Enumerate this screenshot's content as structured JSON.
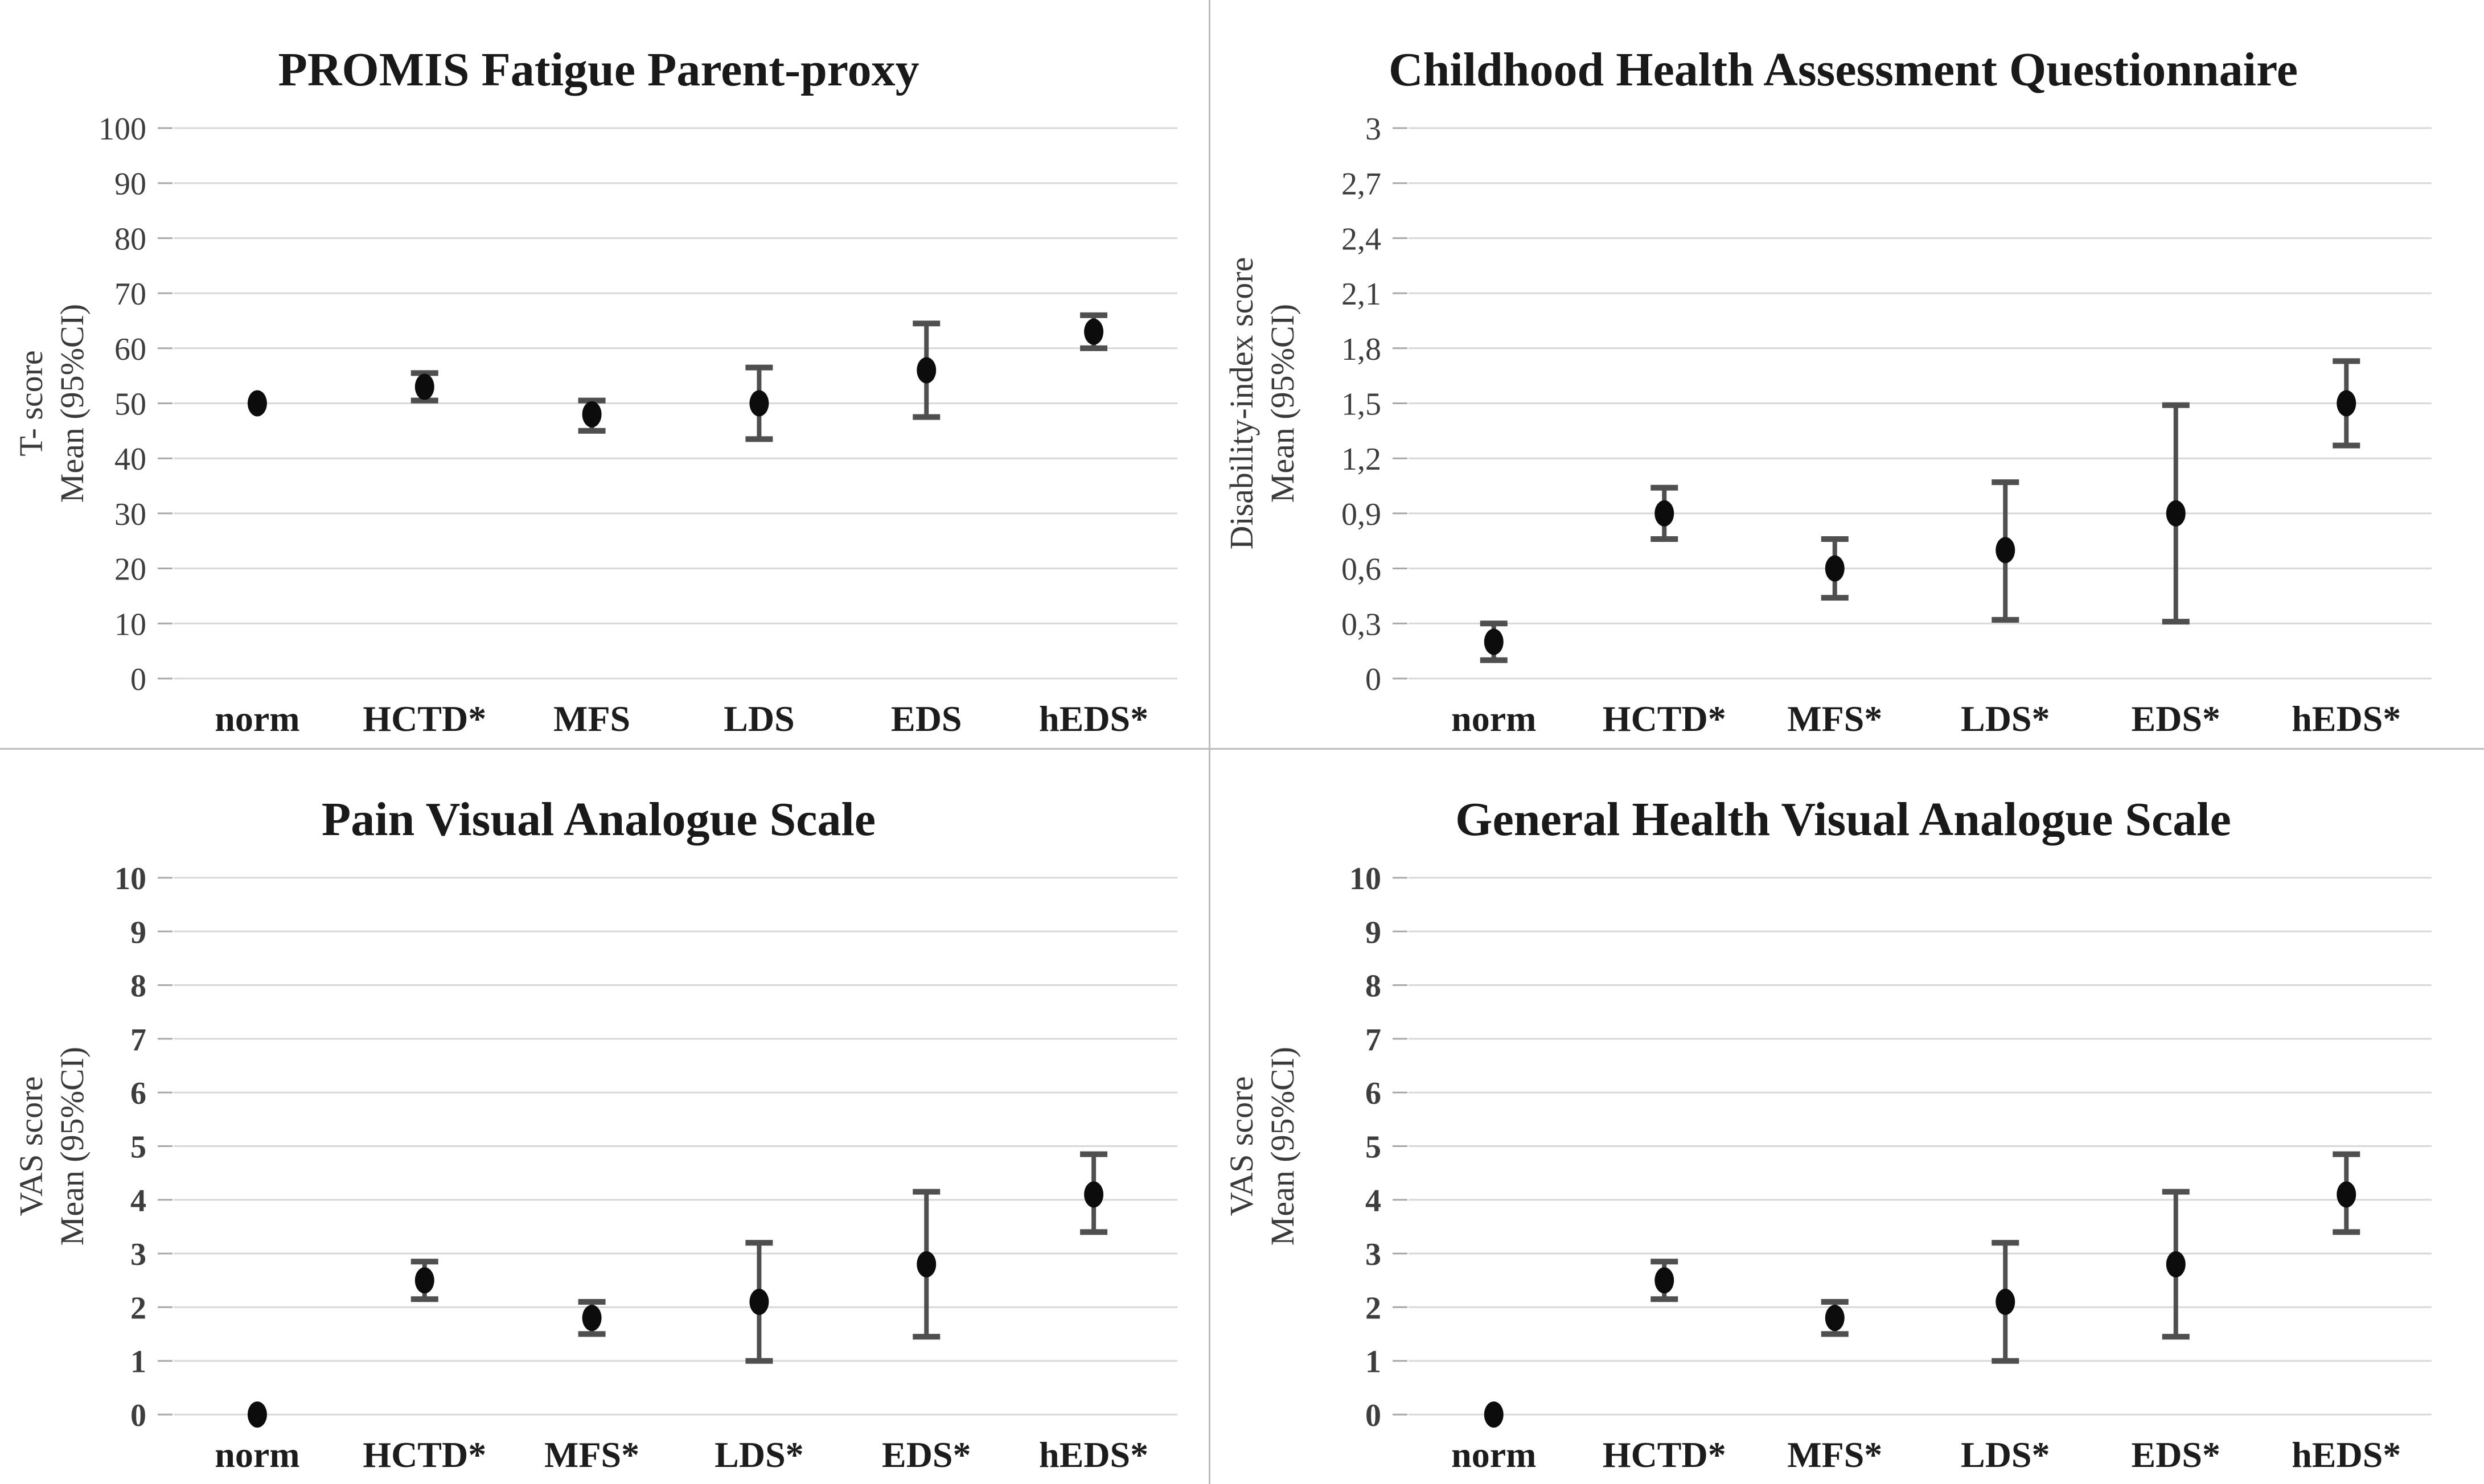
{
  "colors": {
    "background": "#ffffff",
    "divider": "#bdbdbd",
    "gridline": "#d8d8d8",
    "axis_tick": "#a8a8a8",
    "point": "#0c0c0c",
    "error_bar": "#4f4f4f",
    "title_text": "#191919",
    "tick_text": "#3d3d3d",
    "category_text": "#1c1c1c",
    "ylabel_text": "#3a3a3a"
  },
  "chart_data": [
    {
      "type": "scatter",
      "subtype": "mean-with-95ci-errorbars",
      "title": "PROMIS Fatigue Parent-proxy",
      "ylabel_lines": [
        "T- score",
        "Mean (95%CI)"
      ],
      "xlabel": "",
      "ylim": [
        0,
        100
      ],
      "grid": true,
      "legend": "none",
      "ytick_values": [
        0,
        10,
        20,
        30,
        40,
        50,
        60,
        70,
        80,
        90,
        100
      ],
      "ytick_labels": [
        "0",
        "10",
        "20",
        "30",
        "40",
        "50",
        "60",
        "70",
        "80",
        "90",
        "100"
      ],
      "ytick_bold": false,
      "categories": [
        "norm",
        "HCTD*",
        "MFS",
        "LDS",
        "EDS",
        "hEDS*"
      ],
      "points": [
        {
          "category": "norm",
          "mean": 50,
          "ci_low": null,
          "ci_high": null
        },
        {
          "category": "HCTD*",
          "mean": 53,
          "ci_low": 50.5,
          "ci_high": 55.5
        },
        {
          "category": "MFS",
          "mean": 48,
          "ci_low": 45,
          "ci_high": 50.5
        },
        {
          "category": "LDS",
          "mean": 50,
          "ci_low": 43.5,
          "ci_high": 56.5
        },
        {
          "category": "EDS",
          "mean": 56,
          "ci_low": 47.5,
          "ci_high": 64.5
        },
        {
          "category": "hEDS*",
          "mean": 63,
          "ci_low": 60,
          "ci_high": 66
        }
      ]
    },
    {
      "type": "scatter",
      "subtype": "mean-with-95ci-errorbars",
      "title": "Childhood Health Assessment Questionnaire",
      "ylabel_lines": [
        "Disability-index score",
        "Mean (95%CI)"
      ],
      "xlabel": "",
      "ylim": [
        0,
        3
      ],
      "grid": true,
      "legend": "none",
      "ytick_values": [
        0,
        0.3,
        0.6,
        0.9,
        1.2,
        1.5,
        1.8,
        2.1,
        2.4,
        2.7,
        3
      ],
      "ytick_labels": [
        "0",
        "0,3",
        "0,6",
        "0,9",
        "1,2",
        "1,5",
        "1,8",
        "2,1",
        "2,4",
        "2,7",
        "3"
      ],
      "ytick_bold": false,
      "categories": [
        "norm",
        "HCTD*",
        "MFS*",
        "LDS*",
        "EDS*",
        "hEDS*"
      ],
      "points": [
        {
          "category": "norm",
          "mean": 0.2,
          "ci_low": 0.1,
          "ci_high": 0.3
        },
        {
          "category": "HCTD*",
          "mean": 0.9,
          "ci_low": 0.76,
          "ci_high": 1.04
        },
        {
          "category": "MFS*",
          "mean": 0.6,
          "ci_low": 0.44,
          "ci_high": 0.76
        },
        {
          "category": "LDS*",
          "mean": 0.7,
          "ci_low": 0.32,
          "ci_high": 1.07
        },
        {
          "category": "EDS*",
          "mean": 0.9,
          "ci_low": 0.31,
          "ci_high": 1.49
        },
        {
          "category": "hEDS*",
          "mean": 1.5,
          "ci_low": 1.27,
          "ci_high": 1.73
        }
      ]
    },
    {
      "type": "scatter",
      "subtype": "mean-with-95ci-errorbars",
      "title": "Pain Visual Analogue Scale",
      "ylabel_lines": [
        "VAS score",
        "Mean (95%CI)"
      ],
      "xlabel": "",
      "ylim": [
        0,
        10
      ],
      "grid": true,
      "legend": "none",
      "ytick_values": [
        0,
        1,
        2,
        3,
        4,
        5,
        6,
        7,
        8,
        9,
        10
      ],
      "ytick_labels": [
        "0",
        "1",
        "2",
        "3",
        "4",
        "5",
        "6",
        "7",
        "8",
        "9",
        "10"
      ],
      "ytick_bold": true,
      "categories": [
        "norm",
        "HCTD*",
        "MFS*",
        "LDS*",
        "EDS*",
        "hEDS*"
      ],
      "points": [
        {
          "category": "norm",
          "mean": 0,
          "ci_low": null,
          "ci_high": null
        },
        {
          "category": "HCTD*",
          "mean": 2.5,
          "ci_low": 2.15,
          "ci_high": 2.85
        },
        {
          "category": "MFS*",
          "mean": 1.8,
          "ci_low": 1.5,
          "ci_high": 2.1
        },
        {
          "category": "LDS*",
          "mean": 2.1,
          "ci_low": 1.0,
          "ci_high": 3.2
        },
        {
          "category": "EDS*",
          "mean": 2.8,
          "ci_low": 1.45,
          "ci_high": 4.15
        },
        {
          "category": "hEDS*",
          "mean": 4.1,
          "ci_low": 3.4,
          "ci_high": 4.85
        }
      ]
    },
    {
      "type": "scatter",
      "subtype": "mean-with-95ci-errorbars",
      "title": "General Health Visual Analogue Scale",
      "ylabel_lines": [
        "VAS score",
        "Mean (95%CI)"
      ],
      "xlabel": "",
      "ylim": [
        0,
        10
      ],
      "grid": true,
      "legend": "none",
      "ytick_values": [
        0,
        1,
        2,
        3,
        4,
        5,
        6,
        7,
        8,
        9,
        10
      ],
      "ytick_labels": [
        "0",
        "1",
        "2",
        "3",
        "4",
        "5",
        "6",
        "7",
        "8",
        "9",
        "10"
      ],
      "ytick_bold": true,
      "categories": [
        "norm",
        "HCTD*",
        "MFS*",
        "LDS*",
        "EDS*",
        "hEDS*"
      ],
      "points": [
        {
          "category": "norm",
          "mean": 0,
          "ci_low": null,
          "ci_high": null
        },
        {
          "category": "HCTD*",
          "mean": 2.5,
          "ci_low": 2.15,
          "ci_high": 2.85
        },
        {
          "category": "MFS*",
          "mean": 1.8,
          "ci_low": 1.5,
          "ci_high": 2.1
        },
        {
          "category": "LDS*",
          "mean": 2.1,
          "ci_low": 1.0,
          "ci_high": 3.2
        },
        {
          "category": "EDS*",
          "mean": 2.8,
          "ci_low": 1.45,
          "ci_high": 4.15
        },
        {
          "category": "hEDS*",
          "mean": 4.1,
          "ci_low": 3.4,
          "ci_high": 4.85
        }
      ]
    }
  ]
}
